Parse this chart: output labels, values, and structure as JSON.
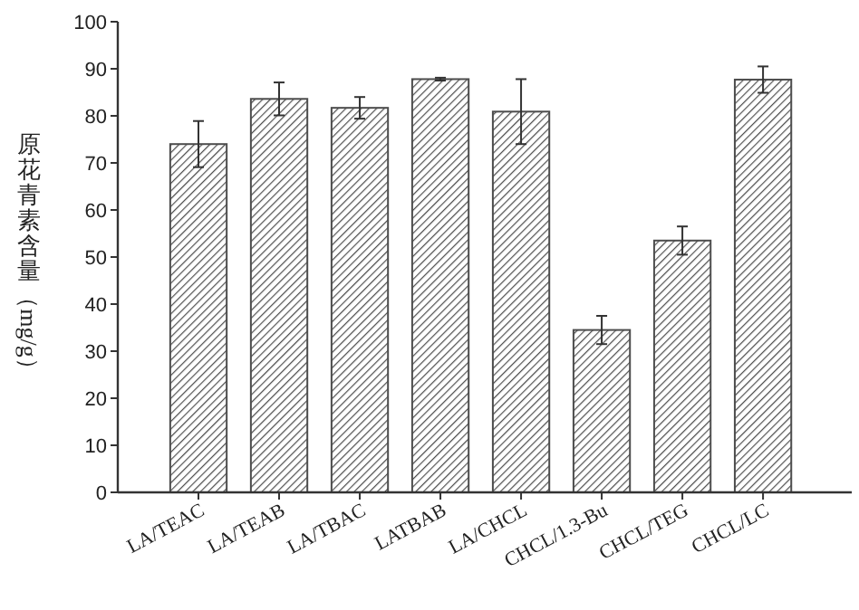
{
  "chart_data": {
    "type": "bar",
    "ylabel": "原花青素含量（mg/g）",
    "categories": [
      "LA/TEAC",
      "LA/TEAB",
      "LA/TBAC",
      "LATBAB",
      "LA/CHCL",
      "CHCL/1.3-Bu",
      "CHCL/TEG",
      "CHCL/LC"
    ],
    "values": [
      74.0,
      83.6,
      81.7,
      87.8,
      80.9,
      34.5,
      53.5,
      87.7
    ],
    "errors": [
      4.9,
      3.5,
      2.3,
      0.3,
      6.9,
      3.0,
      3.0,
      2.8
    ],
    "color": "#4d4d4d",
    "ylim": [
      0,
      100
    ],
    "yticks": [
      0,
      10,
      20,
      30,
      40,
      50,
      60,
      70,
      80,
      90,
      100
    ],
    "grid": false
  }
}
